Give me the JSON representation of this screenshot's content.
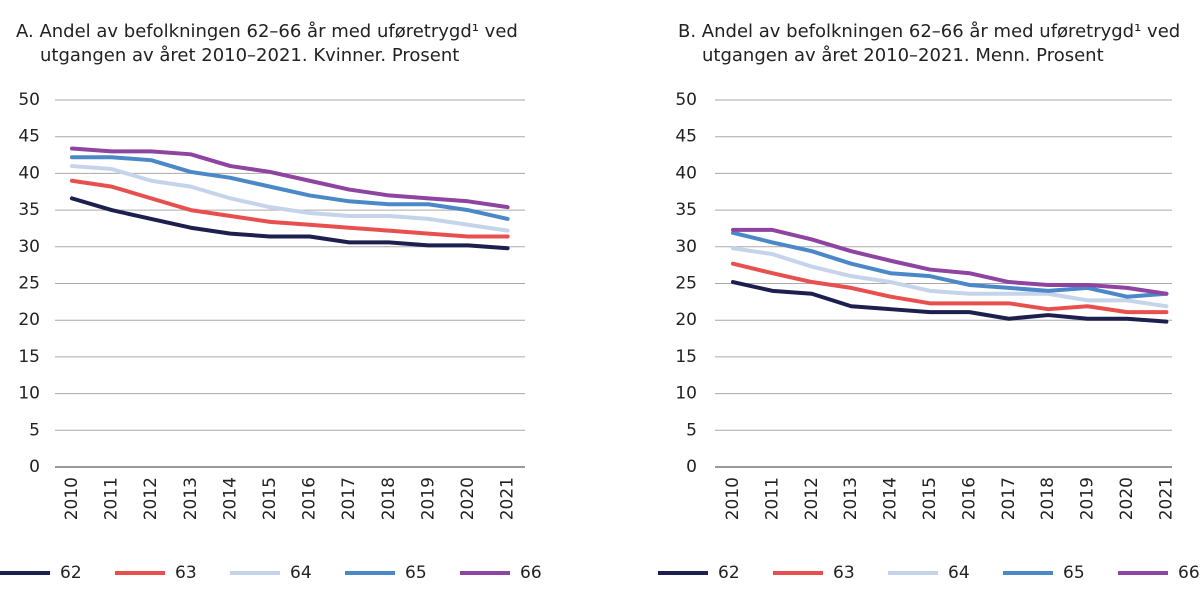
{
  "chart_data": [
    {
      "type": "line",
      "title": "A. Andel av befolkningen 62–66 år med uføretrygd¹ ved utgangen av året 2010–2021. Kvinner. Prosent",
      "categories": [
        "2010",
        "2011",
        "2012",
        "2013",
        "2014",
        "2015",
        "2016",
        "2017",
        "2018",
        "2019",
        "2020",
        "2021"
      ],
      "ylim": [
        0,
        50
      ],
      "yticks": [
        0,
        5,
        10,
        15,
        20,
        25,
        30,
        35,
        40,
        45,
        50
      ],
      "grid": true,
      "series": [
        {
          "name": "62",
          "color": "#1d1f4f",
          "values": [
            36.6,
            35.0,
            33.8,
            32.6,
            31.8,
            31.4,
            31.4,
            30.6,
            30.6,
            30.2,
            30.2,
            29.8
          ]
        },
        {
          "name": "63",
          "color": "#e8504f",
          "values": [
            39.0,
            38.2,
            36.6,
            35.0,
            34.2,
            33.4,
            33.0,
            32.6,
            32.2,
            31.8,
            31.4,
            31.4
          ]
        },
        {
          "name": "64",
          "color": "#c5d4ea",
          "values": [
            41.0,
            40.6,
            39.0,
            38.2,
            36.6,
            35.4,
            34.6,
            34.2,
            34.2,
            33.8,
            33.0,
            32.2
          ]
        },
        {
          "name": "65",
          "color": "#4a88c8",
          "values": [
            42.2,
            42.2,
            41.8,
            40.2,
            39.4,
            38.2,
            37.0,
            36.2,
            35.8,
            35.8,
            35.0,
            33.8
          ]
        },
        {
          "name": "66",
          "color": "#8e44a0",
          "values": [
            43.4,
            43.0,
            43.0,
            42.6,
            41.0,
            40.2,
            39.0,
            37.8,
            37.0,
            36.6,
            36.2,
            35.4
          ]
        }
      ]
    },
    {
      "type": "line",
      "title": "B. Andel av befolkningen 62–66 år med uføretrygd¹ ved utgangen av året 2010–2021. Menn. Prosent",
      "categories": [
        "2010",
        "2011",
        "2012",
        "2013",
        "2014",
        "2015",
        "2016",
        "2017",
        "2018",
        "2019",
        "2020",
        "2021"
      ],
      "ylim": [
        0,
        50
      ],
      "yticks": [
        0,
        5,
        10,
        15,
        20,
        25,
        30,
        35,
        40,
        45,
        50
      ],
      "grid": true,
      "series": [
        {
          "name": "62",
          "color": "#1d1f4f",
          "values": [
            25.2,
            24.0,
            23.6,
            21.9,
            21.5,
            21.1,
            21.1,
            20.2,
            20.7,
            20.2,
            20.2,
            19.8
          ]
        },
        {
          "name": "63",
          "color": "#e8504f",
          "values": [
            27.7,
            26.4,
            25.2,
            24.4,
            23.2,
            22.3,
            22.3,
            22.3,
            21.5,
            21.9,
            21.1,
            21.1
          ]
        },
        {
          "name": "64",
          "color": "#c5d4ea",
          "values": [
            29.8,
            29.0,
            27.3,
            26.0,
            25.2,
            24.0,
            23.6,
            23.6,
            23.6,
            22.7,
            22.7,
            21.9
          ]
        },
        {
          "name": "65",
          "color": "#4a88c8",
          "values": [
            31.9,
            30.6,
            29.4,
            27.7,
            26.4,
            26.0,
            24.8,
            24.4,
            24.0,
            24.4,
            23.2,
            23.6
          ]
        },
        {
          "name": "66",
          "color": "#8e44a0",
          "values": [
            32.3,
            32.3,
            31.0,
            29.4,
            28.1,
            26.9,
            26.4,
            25.2,
            24.8,
            24.8,
            24.4,
            23.6
          ]
        }
      ]
    }
  ]
}
